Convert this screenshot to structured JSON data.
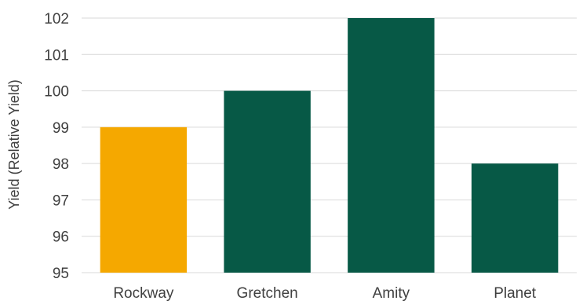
{
  "chart_data": {
    "type": "bar",
    "title": "",
    "xlabel": "",
    "ylabel": "Yield (Relative Yield)",
    "categories": [
      "Rockway",
      "Gretchen",
      "Amity",
      "Planet"
    ],
    "values": [
      99.0,
      100.0,
      102.0,
      98.0
    ],
    "ylim": [
      95,
      102
    ],
    "yticks": [
      95,
      96,
      97,
      98,
      99,
      100,
      101,
      102
    ],
    "grid": true,
    "legend": "none",
    "colors": {
      "highlight": "#F5A800",
      "default": "#075946",
      "grid": "#D9D9D9",
      "text": "#404040"
    },
    "highlight_index": 0
  }
}
